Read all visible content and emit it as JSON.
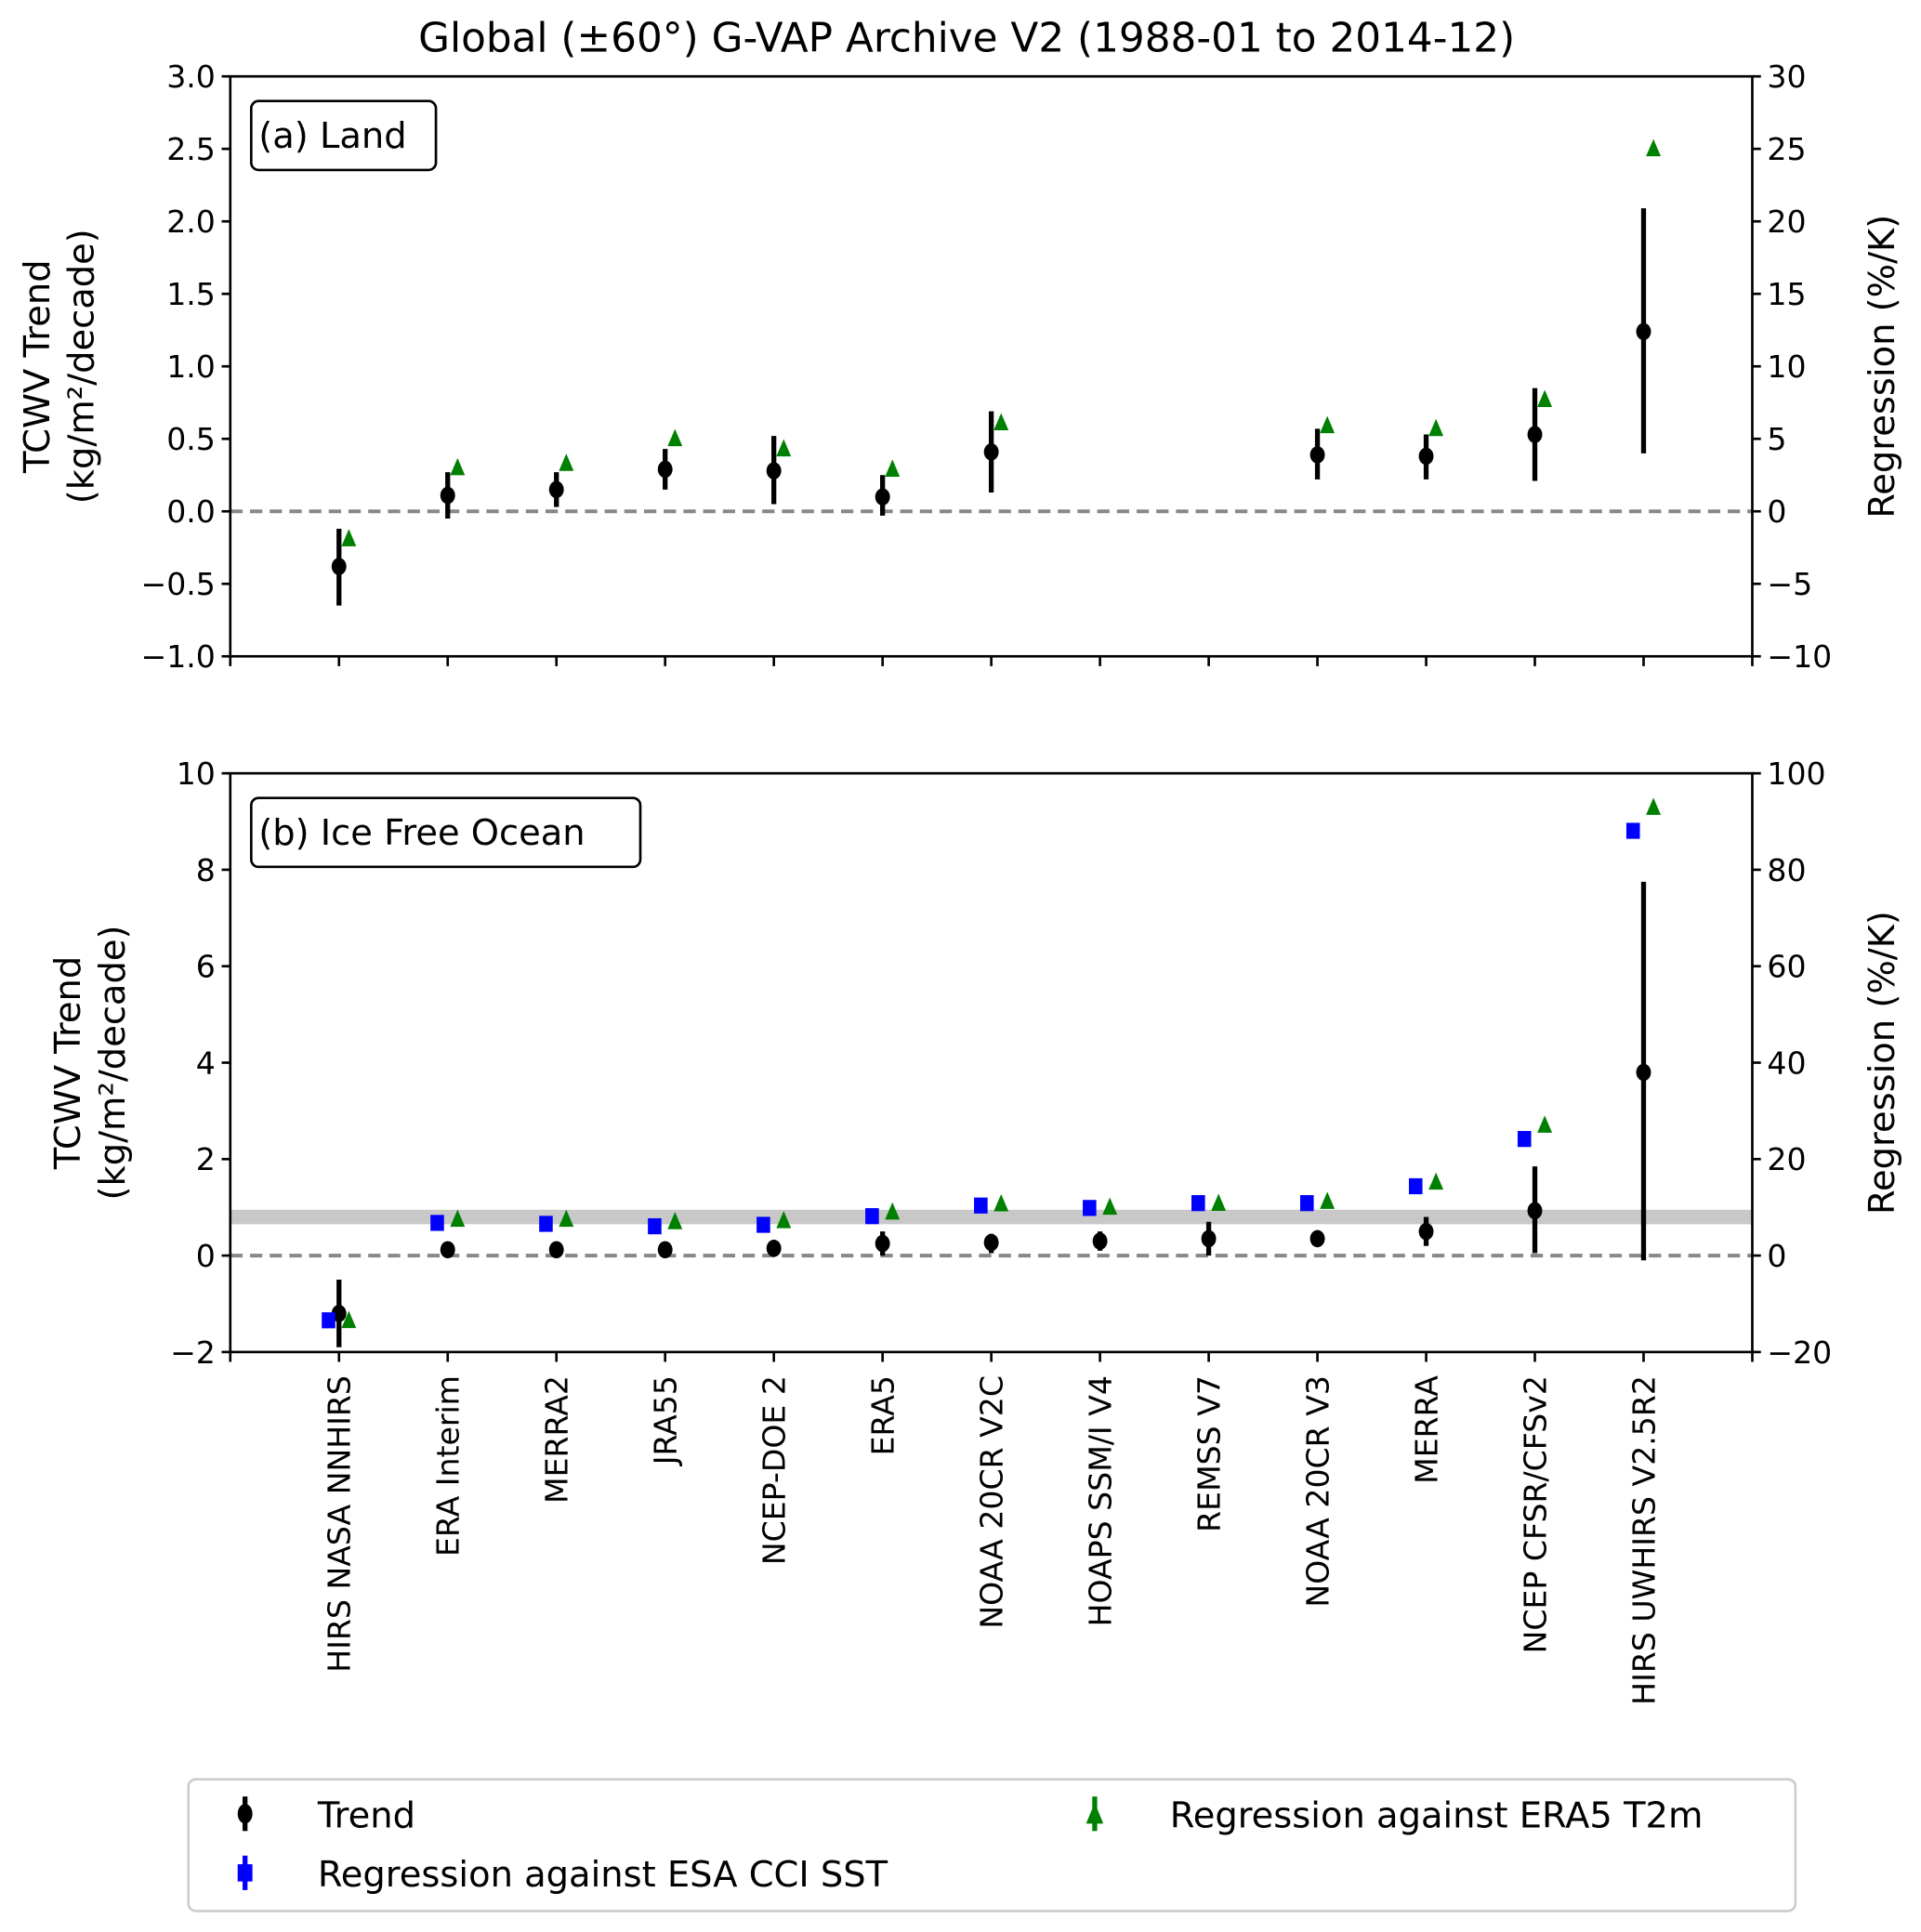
{
  "chart_data": {
    "type": "scatter",
    "title": "Global (±60°) G-VAP Archive V2 (1988-01 to 2014-12)",
    "categories": [
      "HIRS NASA NNHIRS",
      "ERA Interim",
      "MERRA2",
      "JRA55",
      "NCEP-DOE 2",
      "ERA5",
      "NOAA 20CR V2C",
      "HOAPS SSM/I V4",
      "REMSS V7",
      "NOAA 20CR V3",
      "MERRA",
      "NCEP CFSR/CFSv2",
      "HIRS UWHIRS V2.5R2"
    ],
    "panels": [
      {
        "label": "(a) Land",
        "ylabel_line1": "TCWV Trend",
        "ylabel_line2": "(kg/m²/decade)",
        "y2label": "Regression (%/K)",
        "ylim": [
          -1.0,
          3.0
        ],
        "yticks": [
          "-1.0",
          "-0.5",
          "0.0",
          "0.5",
          "1.0",
          "1.5",
          "2.0",
          "2.5",
          "3.0"
        ],
        "ytick_values": [
          -1.0,
          -0.5,
          0.0,
          0.5,
          1.0,
          1.5,
          2.0,
          2.5,
          3.0
        ],
        "y2lim": [
          -10,
          30
        ],
        "y2ticks": [
          "-10",
          "-5",
          "0",
          "5",
          "10",
          "15",
          "20",
          "25",
          "30"
        ],
        "y2tick_values": [
          -10,
          -5,
          0,
          5,
          10,
          15,
          20,
          25,
          30
        ],
        "trend": [
          -0.38,
          0.11,
          0.15,
          0.29,
          0.28,
          0.1,
          0.41,
          null,
          null,
          0.39,
          0.38,
          0.53,
          1.24
        ],
        "trend_low": [
          -0.65,
          -0.05,
          0.03,
          0.15,
          0.05,
          -0.03,
          0.13,
          null,
          null,
          0.22,
          0.22,
          0.21,
          0.4
        ],
        "trend_high": [
          -0.12,
          0.27,
          0.27,
          0.43,
          0.52,
          0.25,
          0.69,
          null,
          null,
          0.57,
          0.53,
          0.85,
          2.09
        ],
        "reg_sst": [
          null,
          null,
          null,
          null,
          null,
          null,
          null,
          null,
          null,
          null,
          null,
          null,
          null
        ],
        "reg_t2m": [
          -1.9,
          3.0,
          3.3,
          5.0,
          4.3,
          2.9,
          6.1,
          null,
          null,
          5.9,
          5.7,
          7.7,
          25.0
        ],
        "band": null
      },
      {
        "label": "(b) Ice Free Ocean",
        "ylabel_line1": "TCWV Trend",
        "ylabel_line2": "(kg/m²/decade)",
        "y2label": "Regression (%/K)",
        "ylim": [
          -2,
          10
        ],
        "yticks": [
          "-2",
          "0",
          "2",
          "4",
          "6",
          "8",
          "10"
        ],
        "ytick_values": [
          -2,
          0,
          2,
          4,
          6,
          8,
          10
        ],
        "y2lim": [
          -20,
          100
        ],
        "y2ticks": [
          "-20",
          "0",
          "20",
          "40",
          "60",
          "80",
          "100"
        ],
        "y2tick_values": [
          -20,
          0,
          20,
          40,
          60,
          80,
          100
        ],
        "trend": [
          -1.2,
          0.12,
          0.12,
          0.12,
          0.15,
          0.25,
          0.27,
          0.3,
          0.35,
          0.35,
          0.5,
          0.93,
          3.8
        ],
        "trend_low": [
          -1.9,
          0.05,
          0.05,
          0.05,
          0.08,
          0.0,
          0.05,
          0.1,
          0.0,
          0.2,
          0.2,
          0.05,
          -0.1
        ],
        "trend_high": [
          -0.5,
          0.2,
          0.2,
          0.2,
          0.22,
          0.5,
          0.45,
          0.5,
          0.7,
          0.5,
          0.8,
          1.85,
          7.75
        ],
        "reg_sst": [
          -13.3,
          6.9,
          6.7,
          6.2,
          6.5,
          8.3,
          10.5,
          10.0,
          11.0,
          11.0,
          14.5,
          24.3,
          88.2
        ],
        "reg_t2m": [
          -13.5,
          7.5,
          7.5,
          7.0,
          7.2,
          9.0,
          10.7,
          10.0,
          10.8,
          11.2,
          15.2,
          27.0,
          92.9
        ],
        "band": [
          6.5,
          9.5
        ]
      }
    ],
    "legend": {
      "placement": "bottom",
      "trend": "Trend",
      "sst": "Regression against ESA CCI SST",
      "t2m": "Regression against ERA5 T2m"
    },
    "colors": {
      "trend": "#000000",
      "sst": "#0000ff",
      "t2m": "#008000",
      "zero": "#888888",
      "band": "#c8c8c8"
    }
  }
}
